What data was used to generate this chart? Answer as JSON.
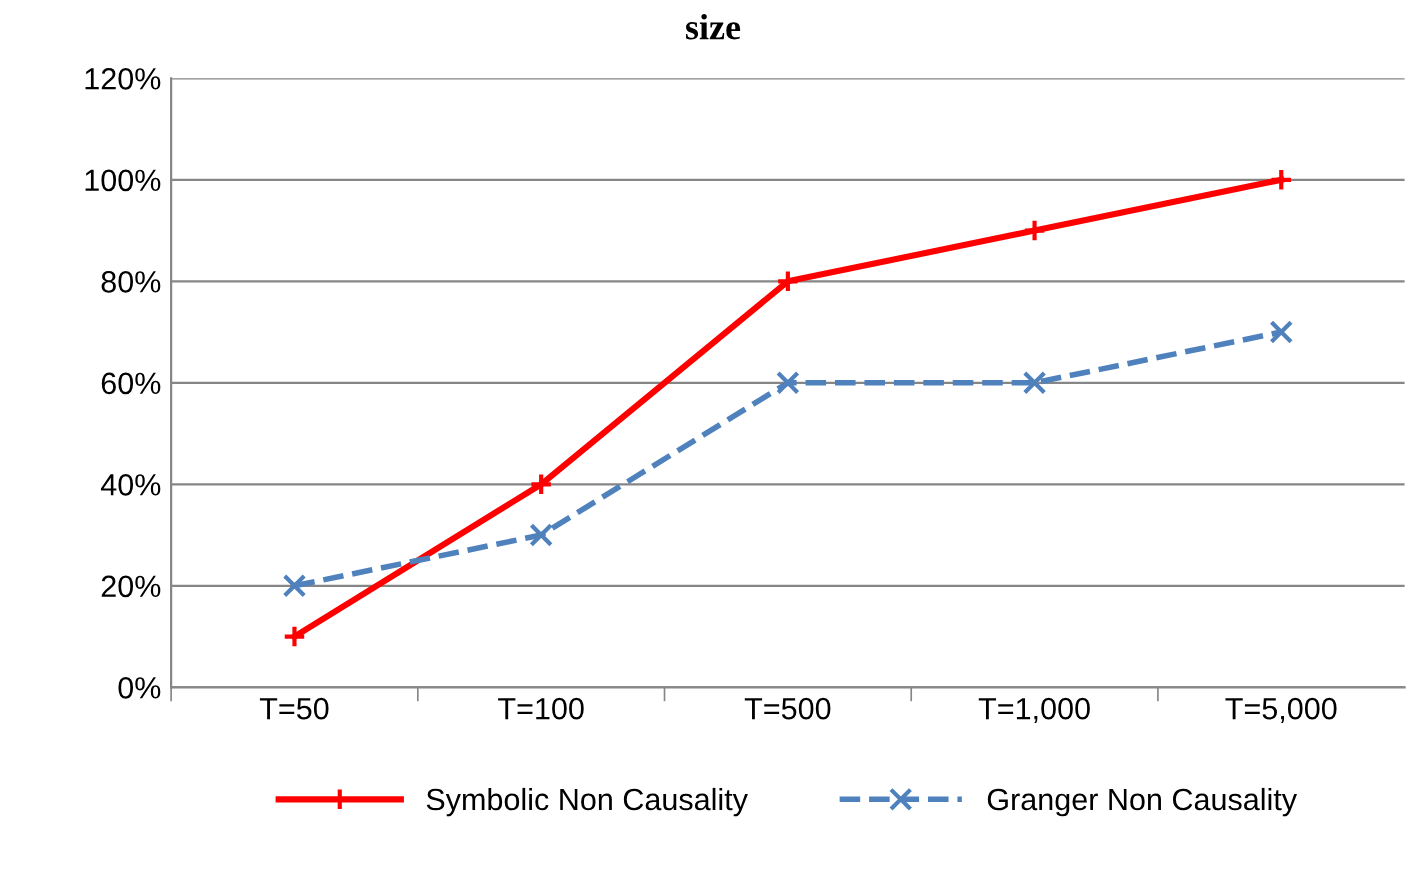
{
  "chart_data": {
    "type": "line",
    "title": "size",
    "categories": [
      "T=50",
      "T=100",
      "T=500",
      "T=1,000",
      "T=5,000"
    ],
    "series": [
      {
        "name": "Symbolic Non Causality",
        "color": "#ff0000",
        "values": [
          10,
          40,
          80,
          90,
          100
        ],
        "marker": "plus",
        "line_style": "solid"
      },
      {
        "name": "Granger Non Causality",
        "color": "#4f81bd",
        "values": [
          20,
          30,
          60,
          60,
          70
        ],
        "marker": "cross",
        "line_style": "dashed"
      }
    ],
    "ylim": [
      0,
      120
    ],
    "yticks": [
      {
        "value": 0,
        "label": "0%"
      },
      {
        "value": 20,
        "label": "20%"
      },
      {
        "value": 40,
        "label": "40%"
      },
      {
        "value": 60,
        "label": "60%"
      },
      {
        "value": 80,
        "label": "80%"
      },
      {
        "value": 100,
        "label": "100%"
      },
      {
        "value": 120,
        "label": "120%"
      }
    ],
    "grid": "y",
    "legend": "bottom"
  }
}
